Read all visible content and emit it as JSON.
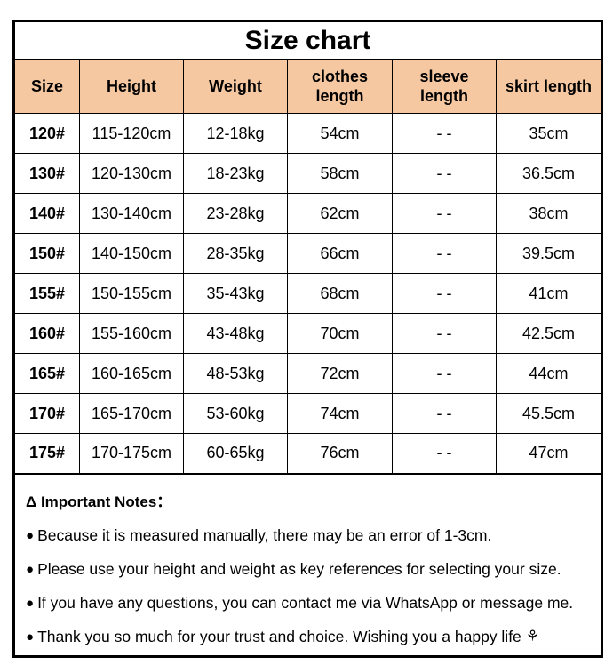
{
  "title": "Size chart",
  "colors": {
    "header_bg": "#F6C8A2",
    "border": "#000000",
    "background": "#FFFFFF"
  },
  "table": {
    "headers": [
      "Size",
      "Height",
      "Weight",
      "clothes length",
      "sleeve length",
      "skirt length"
    ],
    "rows": [
      [
        "120#",
        "115-120cm",
        "12-18kg",
        "54cm",
        "- -",
        "35cm"
      ],
      [
        "130#",
        "120-130cm",
        "18-23kg",
        "58cm",
        "- -",
        "36.5cm"
      ],
      [
        "140#",
        "130-140cm",
        "23-28kg",
        "62cm",
        "- -",
        "38cm"
      ],
      [
        "150#",
        "140-150cm",
        "28-35kg",
        "66cm",
        "- -",
        "39.5cm"
      ],
      [
        "155#",
        "150-155cm",
        "35-43kg",
        "68cm",
        "- -",
        "41cm"
      ],
      [
        "160#",
        "155-160cm",
        "43-48kg",
        "70cm",
        "- -",
        "42.5cm"
      ],
      [
        "165#",
        "160-165cm",
        "48-53kg",
        "72cm",
        "- -",
        "44cm"
      ],
      [
        "170#",
        "165-170cm",
        "53-60kg",
        "74cm",
        "- -",
        "45.5cm"
      ],
      [
        "175#",
        "170-175cm",
        "60-65kg",
        "76cm",
        "- -",
        "47cm"
      ]
    ]
  },
  "notes": {
    "heading": "Δ Important Notes：",
    "bullet_icon": "●",
    "flower_icon": "⚘",
    "items": [
      "Because it is measured manually, there may be an error of 1-3cm.",
      "Please use your height and weight as key references for selecting your size.",
      "If you have any questions, you can contact me via WhatsApp or message me.",
      "Thank you so much for your trust and choice. Wishing you a happy life"
    ]
  }
}
